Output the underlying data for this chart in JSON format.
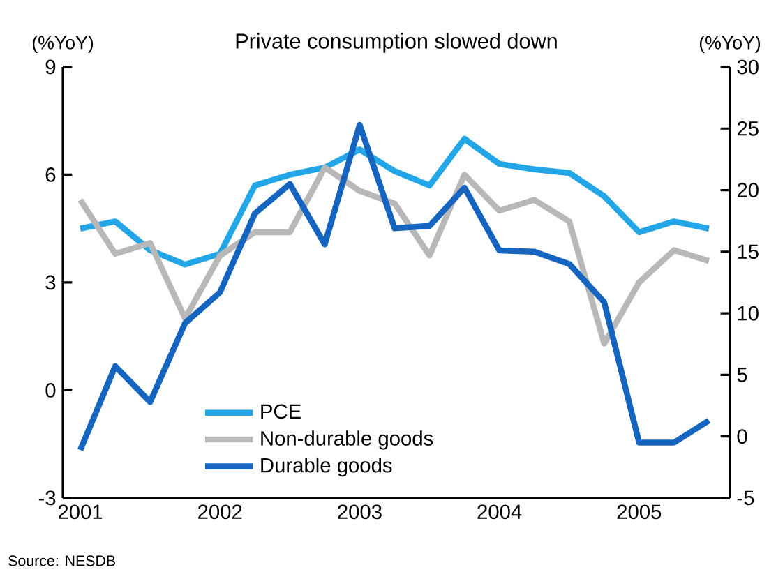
{
  "chart_data": {
    "type": "line",
    "title": "Private consumption slowed down",
    "ylabel": "(%YoY)",
    "y2label": "(%YoY)",
    "annotations": [
      "Source: NESDB"
    ],
    "categories": [
      "2001",
      null,
      null,
      null,
      "2002",
      null,
      null,
      null,
      "2003",
      null,
      null,
      null,
      "2004",
      null,
      null,
      null,
      "2005",
      null,
      null
    ],
    "series": [
      {
        "name": "PCE",
        "color": "#22a6e8",
        "values": [
          4.5,
          4.7,
          3.9,
          3.5,
          3.8,
          5.7,
          6.0,
          6.2,
          6.7,
          6.1,
          5.7,
          7.0,
          6.3,
          6.15,
          6.05,
          5.4,
          4.4,
          4.7,
          4.5
        ]
      },
      {
        "name": "Non-durable goods",
        "color": "#b8b8b8",
        "values": [
          5.3,
          3.8,
          4.1,
          2.0,
          3.75,
          4.4,
          4.4,
          6.2,
          5.55,
          5.2,
          3.75,
          6.0,
          5.0,
          5.3,
          4.7,
          1.3,
          3.0,
          3.9,
          3.6
        ]
      },
      {
        "name": "Durable goods",
        "color": "#1565c0",
        "axis": "y2",
        "values": [
          -1.1,
          5.7,
          2.8,
          9.2,
          11.7,
          18.1,
          20.5,
          15.6,
          25.3,
          16.9,
          17.1,
          20.2,
          15.1,
          15.0,
          14.0,
          10.9,
          -0.5,
          -0.5,
          1.3
        ]
      }
    ],
    "ylim": [
      -3,
      9
    ],
    "yticks": [
      -3,
      0,
      3,
      6,
      9
    ],
    "y2lim": [
      -5,
      30
    ],
    "y2ticks": [
      -5,
      0,
      5,
      10,
      15,
      20,
      25,
      30
    ],
    "grid": false,
    "legend": "bottom",
    "marker": "none",
    "line_style": "solid"
  }
}
